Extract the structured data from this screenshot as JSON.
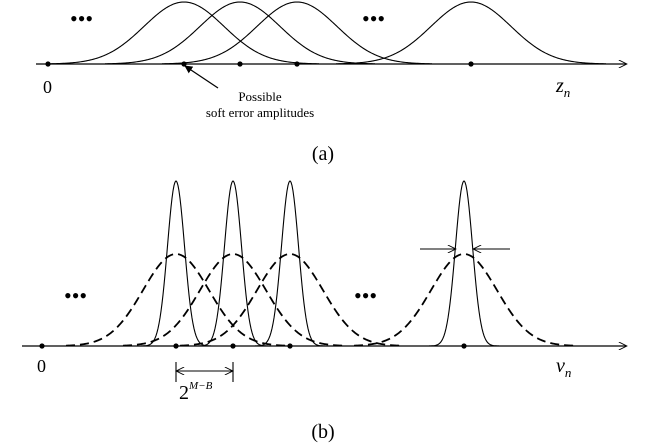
{
  "panel_a": {
    "caption": "(a)",
    "origin_label": "0",
    "axis_var": "z",
    "axis_sub": "n",
    "annotation_line1": "Possible",
    "annotation_line2": "soft error amplitudes",
    "ellipsis_left": "•••",
    "ellipsis_right": "•••"
  },
  "panel_b": {
    "caption": "(b)",
    "origin_label": "0",
    "axis_var": "v",
    "axis_sub": "n",
    "spacing_base": "2",
    "spacing_exp": "M−B",
    "ellipsis_left": "•••",
    "ellipsis_right": "•••"
  }
}
